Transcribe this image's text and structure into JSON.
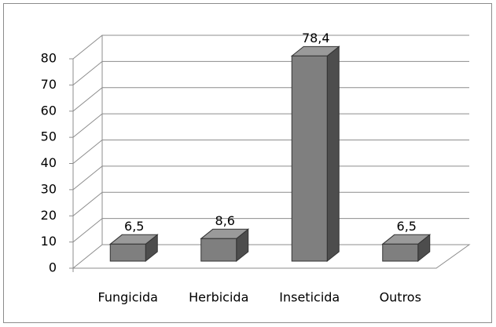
{
  "chart_data": {
    "type": "bar3d",
    "categories": [
      "Fungicida",
      "Herbicida",
      "Inseticida",
      "Outros"
    ],
    "values": [
      6.5,
      8.6,
      78.4,
      6.5
    ],
    "value_labels": [
      "6,5",
      "8,6",
      "78,4",
      "6,5"
    ],
    "color": "#7f7f7f",
    "ylim": [
      0,
      80
    ],
    "yticks": [
      0,
      10,
      20,
      30,
      40,
      50,
      60,
      70,
      80
    ],
    "grid": true
  }
}
